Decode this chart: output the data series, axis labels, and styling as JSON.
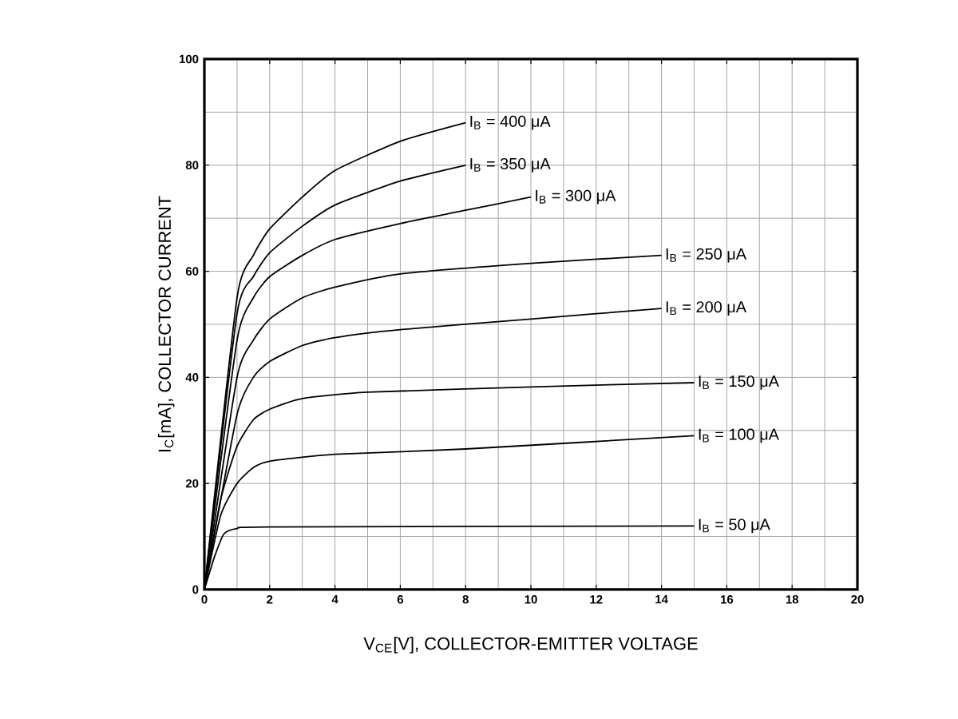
{
  "chart_data": {
    "type": "line",
    "xlabel": "V$_{CE}$[V], COLLECTOR-EMITTER VOLTAGE",
    "ylabel": "I$_{C}$[mA], COLLECTOR CURRENT",
    "xlim": [
      0,
      20
    ],
    "ylim": [
      0,
      100
    ],
    "xticks": [
      0,
      2,
      4,
      6,
      8,
      10,
      12,
      14,
      16,
      18,
      20
    ],
    "yticks": [
      0,
      20,
      40,
      60,
      80,
      100
    ],
    "grid": true,
    "legend": false,
    "marker": "none",
    "line_style": "solid",
    "series": [
      {
        "name": "I$_{B}$ = 400  μA",
        "color": "#000000",
        "x": [
          0,
          1,
          1.5,
          2,
          3,
          4,
          6,
          8
        ],
        "values": [
          0,
          55,
          63,
          68,
          74,
          79,
          84.5,
          88
        ]
      },
      {
        "name": "I$_{B}$ = 350  μA",
        "color": "#000000",
        "x": [
          0,
          1,
          1.5,
          2,
          3,
          4,
          6,
          8
        ],
        "values": [
          0,
          52,
          59,
          63.5,
          68.5,
          72.5,
          77,
          80
        ]
      },
      {
        "name": "I$_{B}$ = 300  μA",
        "color": "#000000",
        "x": [
          0,
          1,
          1.5,
          2,
          3,
          4,
          6,
          8,
          10
        ],
        "values": [
          0,
          47,
          55,
          59,
          63,
          66,
          69,
          71.5,
          74
        ]
      },
      {
        "name": "I$_{B}$ = 250  μA",
        "color": "#000000",
        "x": [
          0,
          1,
          1.5,
          2,
          3,
          4,
          6,
          10,
          14
        ],
        "values": [
          0,
          40,
          47,
          51,
          55,
          57,
          59.5,
          61.5,
          63
        ]
      },
      {
        "name": "I$_{B}$ = 200  μA",
        "color": "#000000",
        "x": [
          0,
          1,
          1.5,
          2,
          3,
          4,
          6,
          10,
          14
        ],
        "values": [
          0,
          33,
          40,
          43,
          46,
          47.5,
          49,
          51,
          53
        ]
      },
      {
        "name": "I$_{B}$ = 150  μA",
        "color": "#000000",
        "x": [
          0,
          0.5,
          1,
          1.5,
          2,
          3,
          5,
          10,
          15
        ],
        "values": [
          0,
          17,
          27,
          32,
          34,
          36,
          37.2,
          38.2,
          39
        ]
      },
      {
        "name": "I$_{B}$ = 100  μA",
        "color": "#000000",
        "x": [
          0,
          0.5,
          1,
          1.5,
          2,
          4,
          8,
          15
        ],
        "values": [
          0,
          14,
          20,
          23,
          24.2,
          25.5,
          26.5,
          29
        ]
      },
      {
        "name": "I$_{B}$ = 50  μA",
        "color": "#000000",
        "x": [
          0,
          0.3,
          0.6,
          1,
          2,
          15
        ],
        "values": [
          0,
          6,
          10.5,
          11.5,
          11.8,
          12
        ]
      }
    ]
  }
}
